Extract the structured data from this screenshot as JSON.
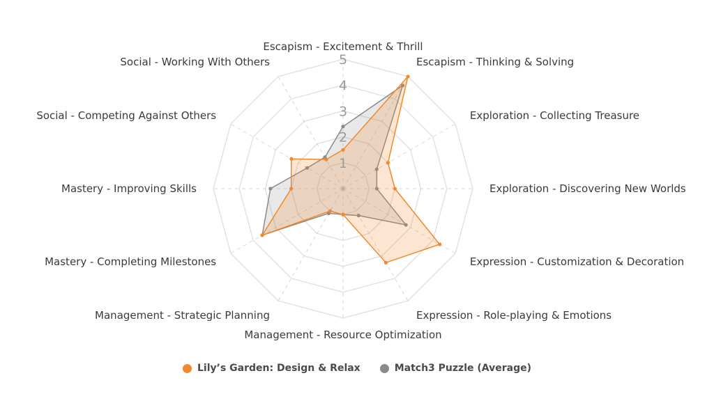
{
  "chart_data": {
    "type": "radar",
    "axes": [
      "Escapism - Excitement & Thrill",
      "Escapism - Thinking & Solving",
      "Exploration - Collecting Treasure",
      "Exploration - Discovering New Worlds",
      "Expression - Customization & Decoration",
      "Expression - Role-playing & Emotions",
      "Management - Resource Optimization",
      "Management - Strategic Planning",
      "Mastery - Completing Milestones",
      "Mastery - Improving Skills",
      "Social - Competing Against Others",
      "Social - Working With Others"
    ],
    "r_ticks": [
      "1",
      "2",
      "3",
      "4",
      "5"
    ],
    "r_range": [
      0,
      5
    ],
    "series": [
      {
        "name": "Lily's Garden: Design & Relax",
        "color": "#f08a2c",
        "values": [
          1.5,
          5.0,
          2.0,
          2.0,
          4.3,
          3.3,
          1.0,
          1.0,
          3.6,
          2.0,
          2.3,
          1.3
        ]
      },
      {
        "name": "Match3 Puzzle (Average)",
        "color": "#8a8a8a",
        "values": [
          2.4,
          4.6,
          1.5,
          1.3,
          2.8,
          1.2,
          1.0,
          1.1,
          3.6,
          2.8,
          1.6,
          1.4
        ]
      }
    ]
  },
  "legend": [
    {
      "label": "Lily’s Garden: Design & Relax",
      "color": "#f08a2c"
    },
    {
      "label": "Match3 Puzzle (Average)",
      "color": "#8a8a8a"
    }
  ]
}
